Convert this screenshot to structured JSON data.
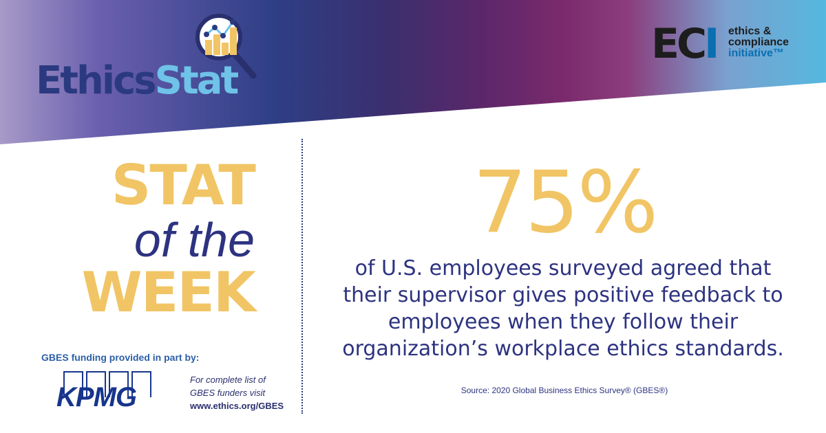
{
  "banner": {
    "logo_left": {
      "part1": "Ethics",
      "part2": "Stat"
    },
    "logo_right": {
      "acronym_letters": "EC",
      "acronym_last": "I",
      "line1": "ethics &",
      "line2": "compliance",
      "line3": "initiative™"
    },
    "colors": {
      "navy": "#2b3a80",
      "light_blue": "#6fc2e8",
      "purple": "#7a2a6c",
      "gold": "#f1c565"
    }
  },
  "title": {
    "line1": "STAT",
    "line2": "of the",
    "line3": "WEEK"
  },
  "funding": {
    "label": "GBES funding provided in part by:",
    "sponsor": "KPMG",
    "note_line1": "For complete list of",
    "note_line2": "GBES funders visit",
    "url": "www.ethics.org/GBES"
  },
  "stat": {
    "value": "75%",
    "line1": "of U.S. employees surveyed agreed that",
    "line2": "their supervisor gives positive feedback to",
    "line3": "employees when they follow their",
    "line4": "organization’s workplace ethics standards."
  },
  "source": "Source: 2020 Global Business Ethics Survey® (GBES®)"
}
